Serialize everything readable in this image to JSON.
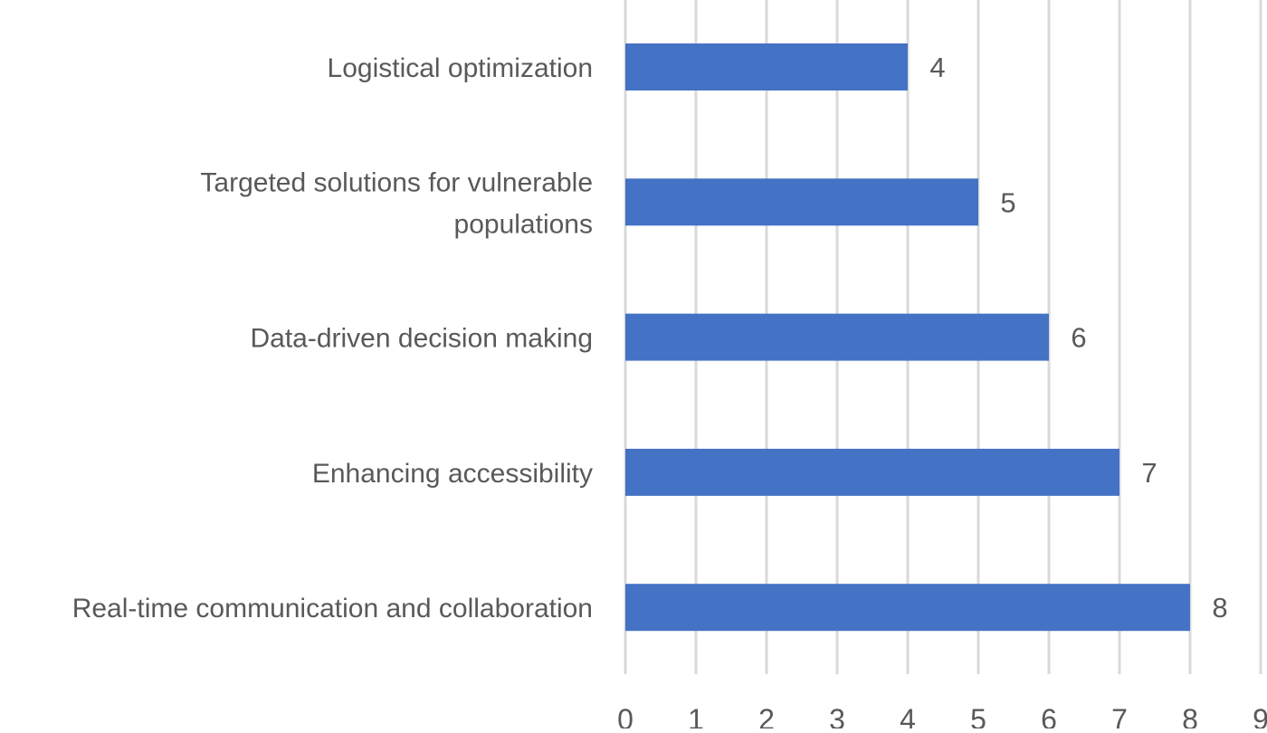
{
  "chart_data": {
    "type": "bar",
    "orientation": "horizontal",
    "title": "",
    "xlabel": "",
    "ylabel": "",
    "categories": [
      "Logistical optimization",
      "Targeted solutions for vulnerable populations",
      "Data-driven decision making",
      "Enhancing accessibility",
      "Real-time communication and collaboration"
    ],
    "category_lines": [
      [
        "Logistical optimization"
      ],
      [
        "Targeted solutions for vulnerable",
        "populations"
      ],
      [
        "Data-driven decision making"
      ],
      [
        "Enhancing accessibility"
      ],
      [
        "Real-time communication and collaboration"
      ]
    ],
    "values": [
      4,
      5,
      6,
      7,
      8
    ],
    "xlim": [
      0,
      9
    ],
    "xticks": [
      "0",
      "1",
      "2",
      "3",
      "4",
      "5",
      "6",
      "7",
      "8",
      "9"
    ],
    "grid": true,
    "data_labels": true,
    "legend": "none",
    "colors": {
      "bar": "#4472C4",
      "grid": "#D9D9D9",
      "text": "#595959"
    }
  }
}
